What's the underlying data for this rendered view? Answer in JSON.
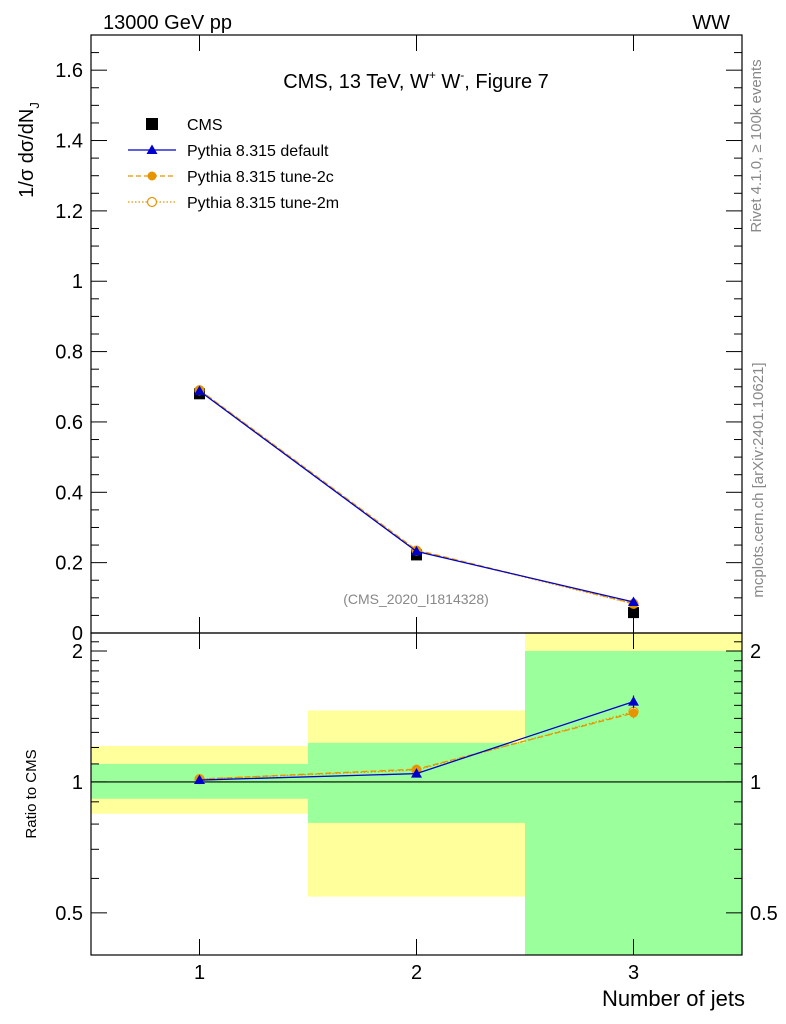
{
  "header": {
    "left": "13000 GeV pp",
    "right": "WW"
  },
  "side": {
    "rivet": "Rivet 4.1.0, ≥ 100k events",
    "mcplots": "mcplots.cern.ch [arXiv:2401.10621]"
  },
  "chart_data": {
    "type": "line",
    "title": "CMS, 13 TeV, W⁺ W⁻, Figure 7",
    "title_parts": {
      "a": "CMS, 13 TeV, W",
      "b": "+",
      "c": " W",
      "d": "-",
      "e": ", Figure 7"
    },
    "analysis_label": "(CMS_2020_I1814328)",
    "xlabel": "Number of jets",
    "ylabel": "1/σ dσ/dN",
    "ylabel_sub": "J",
    "ratio_ylabel": "Ratio to CMS",
    "xlim": [
      0.5,
      3.5
    ],
    "ylim": [
      0,
      1.7
    ],
    "ratio_ylim": [
      0.4,
      2.2
    ],
    "x": [
      1,
      2,
      3
    ],
    "x_tick_labels": [
      "1",
      "2",
      "3"
    ],
    "y_ticks": [
      0,
      0.2,
      0.4,
      0.6,
      0.8,
      1,
      1.2,
      1.4,
      1.6
    ],
    "y_tick_labels": [
      "0",
      "0.2",
      "0.4",
      "0.6",
      "0.8",
      "1",
      "1.2",
      "1.4",
      "1.6"
    ],
    "ratio_ticks": [
      0.5,
      1,
      2
    ],
    "ratio_tick_labels": [
      "0.5",
      "1",
      "2"
    ],
    "data": {
      "name": "CMS",
      "values": [
        0.68,
        0.222,
        0.058
      ],
      "color": "#000000"
    },
    "series": [
      {
        "name": "Pythia 8.315 default",
        "values": [
          0.688,
          0.232,
          0.088
        ],
        "ratio": [
          1.01,
          1.045,
          1.53
        ],
        "ratio_err": [
          0.005,
          0.01,
          0.05
        ],
        "color": "#0000cc",
        "style": "solid",
        "marker": "triangle"
      },
      {
        "name": "Pythia 8.315 tune-2c",
        "values": [
          0.691,
          0.236,
          0.084
        ],
        "ratio": [
          1.015,
          1.07,
          1.44
        ],
        "ratio_err": [
          0.005,
          0.01,
          0.04
        ],
        "color": "#e69500",
        "style": "dashed",
        "marker": "filled-circle"
      },
      {
        "name": "Pythia 8.315 tune-2m",
        "values": [
          0.69,
          0.234,
          0.083
        ],
        "ratio": [
          1.015,
          1.065,
          1.45
        ],
        "ratio_err": [
          0.005,
          0.01,
          0.04
        ],
        "color": "#e69500",
        "style": "dotted",
        "marker": "open-circle"
      }
    ],
    "uncertainty_bands": [
      {
        "x_range": [
          0.5,
          1.5
        ],
        "green": [
          0.915,
          1.1
        ],
        "yellow": [
          0.845,
          1.21
        ]
      },
      {
        "x_range": [
          1.5,
          2.5
        ],
        "green": [
          0.805,
          1.23
        ],
        "yellow": [
          0.545,
          1.46
        ]
      },
      {
        "x_range": [
          2.5,
          3.5
        ],
        "green": [
          0.4,
          2.0
        ],
        "yellow": [
          0.4,
          2.2
        ]
      }
    ],
    "band_colors": {
      "green": "#9bff9b",
      "yellow": "#ffff9b"
    }
  }
}
